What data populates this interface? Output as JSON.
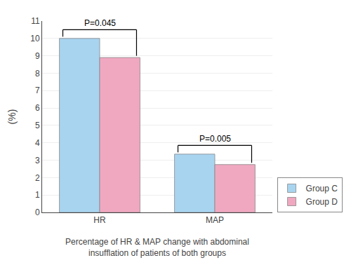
{
  "chart_data": {
    "type": "bar",
    "categories": [
      "HR",
      "MAP"
    ],
    "series": [
      {
        "name": "Group C",
        "color": "#A8D4F0",
        "values": [
          10.0,
          3.35
        ]
      },
      {
        "name": "Group D",
        "color": "#F0A8C0",
        "values": [
          8.9,
          2.75
        ]
      }
    ],
    "ylim": [
      0,
      11
    ],
    "yticks": [
      0,
      1,
      2,
      3,
      4,
      5,
      6,
      7,
      8,
      9,
      10,
      11
    ],
    "ylabel": "(%)",
    "xlabel": "Percentage of HR & MAP change with abdominal\ninsufflation of patients of both groups",
    "annotations": [
      {
        "text": "P=0.045",
        "category": "HR"
      },
      {
        "text": "P=0.005",
        "category": "MAP"
      }
    ],
    "grid": true,
    "legend": "lower right"
  }
}
